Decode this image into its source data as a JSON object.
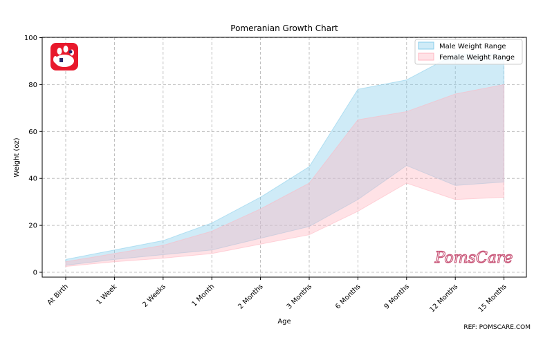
{
  "chart_data": {
    "type": "area",
    "title": "Pomeranian Growth Chart",
    "xlabel": "Age",
    "ylabel": "Weight (oz)",
    "ylim": [
      0,
      100
    ],
    "yticks": [
      0,
      20,
      40,
      60,
      80,
      100
    ],
    "grid": true,
    "legend_position": "top-right",
    "categories": [
      "At Birth",
      "1 Week",
      "2 Weeks",
      "1 Month",
      "2 Months",
      "3 Months",
      "6 Months",
      "9 Months",
      "12 Months",
      "15 Months"
    ],
    "series": [
      {
        "name": "Male Weight Range",
        "color": "#87ceeb",
        "min": [
          3,
          5.5,
          7.5,
          9.5,
          14.5,
          19.5,
          31,
          45.5,
          37,
          38.5
        ],
        "max": [
          5.5,
          9.5,
          13.5,
          21,
          32,
          45,
          78,
          82,
          93,
          93
        ]
      },
      {
        "name": "Female Weight Range",
        "color": "#ffb6c1",
        "min": [
          2.5,
          4.5,
          6,
          8,
          12,
          16,
          26,
          38,
          31,
          32
        ],
        "max": [
          4.5,
          8,
          11.5,
          17.5,
          27,
          38,
          65,
          68.5,
          76,
          80
        ]
      }
    ]
  },
  "footer": {
    "ref": "REF: POMSCARE.COM",
    "brand": "PomsCare"
  },
  "logo": {
    "icon": "paw-icon",
    "color": "#e8192c"
  }
}
